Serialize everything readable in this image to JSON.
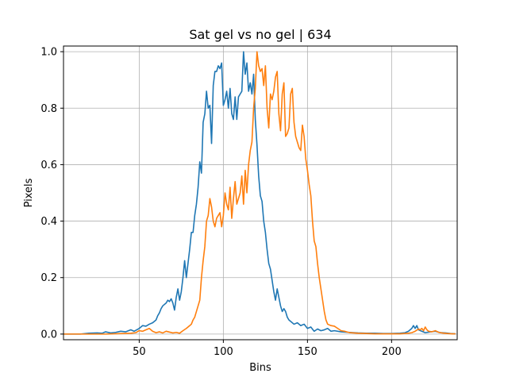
{
  "chart_data": {
    "type": "line",
    "title": "Sat gel vs no gel | 634",
    "xlabel": "Bins",
    "ylabel": "Pixels",
    "xlim": [
      5,
      239
    ],
    "ylim": [
      -0.02,
      1.02
    ],
    "xticks": [
      50,
      100,
      150,
      200
    ],
    "yticks": [
      0.0,
      0.2,
      0.4,
      0.6,
      0.8,
      1.0
    ],
    "xtick_labels": [
      "50",
      "100",
      "150",
      "200"
    ],
    "ytick_labels": [
      "0.0",
      "0.2",
      "0.4",
      "0.6",
      "0.8",
      "1.0"
    ],
    "grid": true,
    "legend": "none",
    "series": [
      {
        "color": "#1f77b4",
        "points": [
          [
            5,
            0.0
          ],
          [
            10,
            0.0
          ],
          [
            15,
            0.0
          ],
          [
            20,
            0.003
          ],
          [
            25,
            0.004
          ],
          [
            28,
            0.003
          ],
          [
            30,
            0.008
          ],
          [
            33,
            0.004
          ],
          [
            36,
            0.006
          ],
          [
            39,
            0.01
          ],
          [
            42,
            0.008
          ],
          [
            45,
            0.015
          ],
          [
            47,
            0.01
          ],
          [
            50,
            0.02
          ],
          [
            52,
            0.03
          ],
          [
            54,
            0.028
          ],
          [
            56,
            0.035
          ],
          [
            58,
            0.04
          ],
          [
            60,
            0.05
          ],
          [
            61,
            0.065
          ],
          [
            62,
            0.075
          ],
          [
            63,
            0.09
          ],
          [
            64,
            0.1
          ],
          [
            66,
            0.11
          ],
          [
            67,
            0.12
          ],
          [
            68,
            0.115
          ],
          [
            69,
            0.125
          ],
          [
            70,
            0.11
          ],
          [
            71,
            0.085
          ],
          [
            72,
            0.13
          ],
          [
            73,
            0.16
          ],
          [
            74,
            0.12
          ],
          [
            75,
            0.15
          ],
          [
            76,
            0.2
          ],
          [
            77,
            0.26
          ],
          [
            78,
            0.2
          ],
          [
            79,
            0.25
          ],
          [
            80,
            0.3
          ],
          [
            81,
            0.36
          ],
          [
            82,
            0.36
          ],
          [
            83,
            0.42
          ],
          [
            84,
            0.46
          ],
          [
            85,
            0.52
          ],
          [
            86,
            0.61
          ],
          [
            87,
            0.57
          ],
          [
            88,
            0.75
          ],
          [
            89,
            0.78
          ],
          [
            90,
            0.86
          ],
          [
            91,
            0.8
          ],
          [
            92,
            0.81
          ],
          [
            93,
            0.675
          ],
          [
            94,
            0.88
          ],
          [
            95,
            0.93
          ],
          [
            96,
            0.93
          ],
          [
            97,
            0.95
          ],
          [
            98,
            0.94
          ],
          [
            99,
            0.96
          ],
          [
            100,
            0.81
          ],
          [
            101,
            0.83
          ],
          [
            102,
            0.86
          ],
          [
            103,
            0.8
          ],
          [
            104,
            0.87
          ],
          [
            105,
            0.78
          ],
          [
            106,
            0.76
          ],
          [
            107,
            0.84
          ],
          [
            108,
            0.76
          ],
          [
            109,
            0.84
          ],
          [
            110,
            0.85
          ],
          [
            111,
            0.86
          ],
          [
            112,
            1.0
          ],
          [
            113,
            0.92
          ],
          [
            114,
            0.96
          ],
          [
            115,
            0.86
          ],
          [
            116,
            0.89
          ],
          [
            117,
            0.85
          ],
          [
            118,
            0.92
          ],
          [
            119,
            0.76
          ],
          [
            120,
            0.67
          ],
          [
            121,
            0.56
          ],
          [
            122,
            0.49
          ],
          [
            123,
            0.47
          ],
          [
            124,
            0.4
          ],
          [
            125,
            0.36
          ],
          [
            126,
            0.3
          ],
          [
            127,
            0.25
          ],
          [
            128,
            0.23
          ],
          [
            129,
            0.19
          ],
          [
            130,
            0.15
          ],
          [
            131,
            0.12
          ],
          [
            132,
            0.16
          ],
          [
            133,
            0.13
          ],
          [
            134,
            0.1
          ],
          [
            135,
            0.08
          ],
          [
            136,
            0.09
          ],
          [
            137,
            0.08
          ],
          [
            138,
            0.06
          ],
          [
            139,
            0.05
          ],
          [
            140,
            0.045
          ],
          [
            142,
            0.035
          ],
          [
            144,
            0.04
          ],
          [
            146,
            0.03
          ],
          [
            148,
            0.035
          ],
          [
            150,
            0.02
          ],
          [
            152,
            0.025
          ],
          [
            154,
            0.01
          ],
          [
            156,
            0.018
          ],
          [
            158,
            0.012
          ],
          [
            160,
            0.015
          ],
          [
            162,
            0.02
          ],
          [
            164,
            0.01
          ],
          [
            166,
            0.012
          ],
          [
            170,
            0.008
          ],
          [
            175,
            0.006
          ],
          [
            180,
            0.004
          ],
          [
            185,
            0.003
          ],
          [
            190,
            0.003
          ],
          [
            195,
            0.002
          ],
          [
            200,
            0.002
          ],
          [
            205,
            0.003
          ],
          [
            208,
            0.005
          ],
          [
            210,
            0.01
          ],
          [
            212,
            0.02
          ],
          [
            213,
            0.03
          ],
          [
            214,
            0.02
          ],
          [
            215,
            0.03
          ],
          [
            216,
            0.015
          ],
          [
            218,
            0.01
          ],
          [
            220,
            0.005
          ],
          [
            223,
            0.008
          ],
          [
            226,
            0.01
          ],
          [
            229,
            0.005
          ],
          [
            232,
            0.004
          ],
          [
            235,
            0.002
          ],
          [
            238,
            0.001
          ]
        ]
      },
      {
        "color": "#ff7f0e",
        "points": [
          [
            5,
            0.0
          ],
          [
            20,
            0.0
          ],
          [
            30,
            0.0
          ],
          [
            40,
            0.002
          ],
          [
            45,
            0.003
          ],
          [
            48,
            0.005
          ],
          [
            50,
            0.012
          ],
          [
            52,
            0.01
          ],
          [
            54,
            0.015
          ],
          [
            56,
            0.02
          ],
          [
            58,
            0.01
          ],
          [
            60,
            0.005
          ],
          [
            62,
            0.008
          ],
          [
            64,
            0.004
          ],
          [
            66,
            0.01
          ],
          [
            70,
            0.004
          ],
          [
            72,
            0.006
          ],
          [
            74,
            0.003
          ],
          [
            76,
            0.012
          ],
          [
            78,
            0.02
          ],
          [
            80,
            0.03
          ],
          [
            81,
            0.035
          ],
          [
            82,
            0.05
          ],
          [
            83,
            0.06
          ],
          [
            84,
            0.08
          ],
          [
            85,
            0.1
          ],
          [
            86,
            0.12
          ],
          [
            87,
            0.2
          ],
          [
            88,
            0.26
          ],
          [
            89,
            0.31
          ],
          [
            90,
            0.4
          ],
          [
            91,
            0.42
          ],
          [
            92,
            0.48
          ],
          [
            93,
            0.45
          ],
          [
            94,
            0.4
          ],
          [
            95,
            0.38
          ],
          [
            96,
            0.41
          ],
          [
            97,
            0.42
          ],
          [
            98,
            0.43
          ],
          [
            99,
            0.38
          ],
          [
            100,
            0.42
          ],
          [
            101,
            0.5
          ],
          [
            102,
            0.46
          ],
          [
            103,
            0.44
          ],
          [
            104,
            0.52
          ],
          [
            105,
            0.41
          ],
          [
            106,
            0.48
          ],
          [
            107,
            0.54
          ],
          [
            108,
            0.46
          ],
          [
            109,
            0.48
          ],
          [
            110,
            0.5
          ],
          [
            111,
            0.56
          ],
          [
            112,
            0.46
          ],
          [
            113,
            0.58
          ],
          [
            114,
            0.5
          ],
          [
            115,
            0.6
          ],
          [
            116,
            0.65
          ],
          [
            117,
            0.68
          ],
          [
            118,
            0.8
          ],
          [
            119,
            0.87
          ],
          [
            120,
            1.0
          ],
          [
            121,
            0.95
          ],
          [
            122,
            0.93
          ],
          [
            123,
            0.94
          ],
          [
            124,
            0.88
          ],
          [
            125,
            0.95
          ],
          [
            126,
            0.8
          ],
          [
            127,
            0.73
          ],
          [
            128,
            0.85
          ],
          [
            129,
            0.83
          ],
          [
            130,
            0.86
          ],
          [
            131,
            0.91
          ],
          [
            132,
            0.93
          ],
          [
            133,
            0.78
          ],
          [
            134,
            0.72
          ],
          [
            135,
            0.85
          ],
          [
            136,
            0.89
          ],
          [
            137,
            0.7
          ],
          [
            138,
            0.71
          ],
          [
            139,
            0.73
          ],
          [
            140,
            0.85
          ],
          [
            141,
            0.87
          ],
          [
            142,
            0.75
          ],
          [
            143,
            0.7
          ],
          [
            144,
            0.68
          ],
          [
            145,
            0.66
          ],
          [
            146,
            0.65
          ],
          [
            147,
            0.74
          ],
          [
            148,
            0.7
          ],
          [
            149,
            0.62
          ],
          [
            150,
            0.58
          ],
          [
            151,
            0.53
          ],
          [
            152,
            0.49
          ],
          [
            153,
            0.4
          ],
          [
            154,
            0.33
          ],
          [
            155,
            0.31
          ],
          [
            156,
            0.25
          ],
          [
            157,
            0.2
          ],
          [
            158,
            0.16
          ],
          [
            159,
            0.12
          ],
          [
            160,
            0.08
          ],
          [
            161,
            0.05
          ],
          [
            162,
            0.035
          ],
          [
            164,
            0.03
          ],
          [
            166,
            0.028
          ],
          [
            168,
            0.02
          ],
          [
            170,
            0.012
          ],
          [
            172,
            0.01
          ],
          [
            175,
            0.005
          ],
          [
            180,
            0.003
          ],
          [
            185,
            0.002
          ],
          [
            190,
            0.001
          ],
          [
            200,
            0.001
          ],
          [
            205,
            0.001
          ],
          [
            210,
            0.003
          ],
          [
            212,
            0.005
          ],
          [
            214,
            0.01
          ],
          [
            216,
            0.018
          ],
          [
            217,
            0.015
          ],
          [
            218,
            0.02
          ],
          [
            219,
            0.012
          ],
          [
            220,
            0.025
          ],
          [
            221,
            0.015
          ],
          [
            222,
            0.01
          ],
          [
            224,
            0.008
          ],
          [
            226,
            0.012
          ],
          [
            228,
            0.006
          ],
          [
            230,
            0.004
          ],
          [
            233,
            0.002
          ],
          [
            236,
            0.001
          ],
          [
            238,
            0.001
          ]
        ]
      }
    ]
  },
  "colors": {
    "grid": "#b0b0b0",
    "axes": "#000000"
  }
}
